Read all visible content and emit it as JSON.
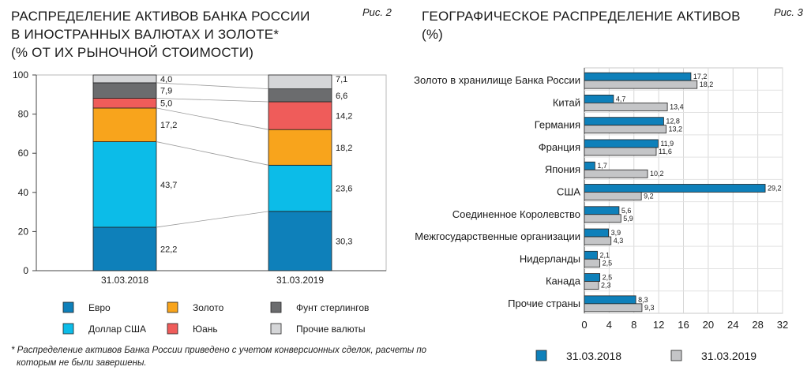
{
  "left": {
    "title_lines": [
      "РАСПРЕДЕЛЕНИЕ АКТИВОВ БАНКА РОССИИ",
      "В ИНОСТРАННЫХ ВАЛЮТАХ И ЗОЛОТЕ*",
      "(% ОТ ИХ РЫНОЧНОЙ СТОИМОСТИ)"
    ],
    "fig_label": "Рис. 2",
    "footnote_lines": [
      "* Распределение активов Банка России приведено с учетом конверсионных сделок, расчеты по",
      "которым не были завершены."
    ]
  },
  "right": {
    "title_lines": [
      "ГЕОГРАФИЧЕСКОЕ РАСПРЕДЕЛЕНИЕ АКТИВОВ",
      "(%)"
    ],
    "fig_label": "Рис. 3"
  },
  "chart_data": [
    {
      "type": "bar",
      "stacked": true,
      "categories": [
        "31.03.2018",
        "31.03.2019"
      ],
      "ylim": [
        0,
        100
      ],
      "yticks": [
        0,
        20,
        40,
        60,
        80,
        100
      ],
      "series": [
        {
          "name": "Евро",
          "color": "#0e80ba",
          "values": [
            22.2,
            30.3
          ],
          "labels": [
            "22,2",
            "30,3"
          ]
        },
        {
          "name": "Доллар США",
          "color": "#0cbce8",
          "values": [
            43.7,
            23.6
          ],
          "labels": [
            "43,7",
            "23,6"
          ]
        },
        {
          "name": "Золото",
          "color": "#f8a41c",
          "values": [
            17.2,
            18.2
          ],
          "labels": [
            "17,2",
            "18,2"
          ]
        },
        {
          "name": "Юань",
          "color": "#ef5c5a",
          "values": [
            5.0,
            14.2
          ],
          "labels": [
            "5,0",
            "14,2"
          ]
        },
        {
          "name": "Фунт стерлингов",
          "color": "#6b6c6e",
          "values": [
            7.9,
            6.6
          ],
          "labels": [
            "7,9",
            "6,6"
          ]
        },
        {
          "name": "Прочие валюты",
          "color": "#d5d6d8",
          "values": [
            4.0,
            7.1
          ],
          "labels": [
            "4,0",
            "7,1"
          ]
        }
      ],
      "legend_order": [
        [
          0,
          2,
          4
        ],
        [
          1,
          3,
          5
        ]
      ],
      "grid": false
    },
    {
      "type": "bar",
      "orientation": "horizontal",
      "categories": [
        "Золото в хранилище Банка России",
        "Китай",
        "Германия",
        "Франция",
        "Япония",
        "США",
        "Соединенное Королевство",
        "Межгосударственные организации",
        "Нидерланды",
        "Канада",
        "Прочие страны"
      ],
      "xlim": [
        0,
        32
      ],
      "xticks": [
        0,
        4,
        8,
        12,
        16,
        20,
        24,
        28,
        32
      ],
      "grid": true,
      "legend_position": "bottom",
      "series": [
        {
          "name": "31.03.2018",
          "color": "#0e80ba",
          "values": [
            17.2,
            4.7,
            12.8,
            11.9,
            1.7,
            29.2,
            5.6,
            3.9,
            2.1,
            2.5,
            8.3
          ],
          "labels": [
            "17,2",
            "4,7",
            "12,8",
            "11,9",
            "1,7",
            "29,2",
            "5,6",
            "3,9",
            "2,1",
            "2,5",
            "8,3"
          ]
        },
        {
          "name": "31.03.2019",
          "color": "#c4c5c7",
          "values": [
            18.2,
            13.4,
            13.2,
            11.6,
            10.2,
            9.2,
            5.9,
            4.3,
            2.5,
            2.3,
            9.3
          ],
          "labels": [
            "18,2",
            "13,4",
            "13,2",
            "11,6",
            "10,2",
            "9,2",
            "5,9",
            "4,3",
            "2,5",
            "2,3",
            "9,3"
          ]
        }
      ]
    }
  ]
}
